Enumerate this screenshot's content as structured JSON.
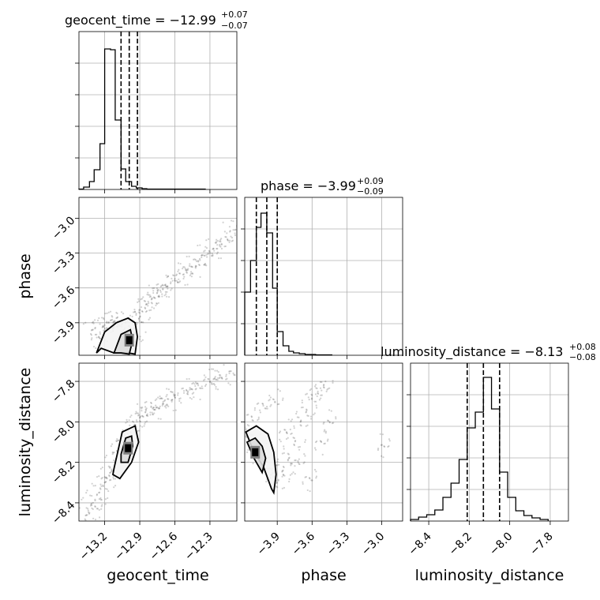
{
  "chart_data": {
    "type": "corner",
    "parameters": [
      "geocent_time",
      "phase",
      "luminosity_distance"
    ],
    "axis_labels": {
      "x": [
        "geocent_time",
        "phase",
        "luminosity_distance"
      ],
      "y": [
        "phase",
        "luminosity_distance"
      ]
    },
    "titles": [
      {
        "name": "geocent_time",
        "median": "−12.99",
        "plus": "+0.07",
        "minus": "−0.07"
      },
      {
        "name": "phase",
        "median": "−3.99",
        "plus": "+0.09",
        "minus": "−0.09"
      },
      {
        "name": "luminosity_distance",
        "median": "−8.13",
        "plus": "+0.08",
        "minus": "−0.08"
      }
    ],
    "ranges": {
      "geocent_time": [
        -13.42,
        -12.07
      ],
      "phase": [
        -4.18,
        -2.82
      ],
      "luminosity_distance": [
        -8.49,
        -7.71
      ]
    },
    "ticks": {
      "geocent_time": [
        -13.2,
        -12.9,
        -12.6,
        -12.3
      ],
      "phase": [
        -3.9,
        -3.6,
        -3.3,
        -3.0
      ],
      "luminosity_distance": [
        -8.4,
        -8.2,
        -8.0,
        -7.8
      ]
    },
    "tick_labels": {
      "geocent_time": [
        "−13.2",
        "−12.9",
        "−12.6",
        "−12.3"
      ],
      "phase": [
        "−3.9",
        "−3.6",
        "−3.3",
        "−3.0"
      ],
      "luminosity_distance": [
        "−8.4",
        "−8.2",
        "−8.0",
        "−7.8"
      ]
    },
    "quantiles": {
      "geocent_time": [
        -13.06,
        -12.99,
        -12.92
      ],
      "phase": [
        -4.08,
        -3.99,
        -3.9
      ],
      "luminosity_distance": [
        -8.21,
        -8.13,
        -8.05
      ]
    },
    "histograms": {
      "geocent_time": {
        "edges": [
          -13.42,
          -13.38,
          -13.33,
          -13.29,
          -13.24,
          -13.2,
          -13.15,
          -13.11,
          -13.06,
          -13.02,
          -12.97,
          -12.93,
          -12.88,
          -12.84,
          -12.79,
          -12.75,
          -12.7,
          -12.66,
          -12.61,
          -12.57,
          -12.52,
          -12.48,
          -12.43,
          -12.39,
          -12.34
        ],
        "counts": [
          0.5,
          3,
          10,
          25,
          58,
          178,
          177,
          88,
          26,
          10,
          4,
          2,
          1,
          0.5,
          0.5,
          0.5,
          0.5,
          0.5,
          0.5,
          0.5,
          0.5,
          0.5,
          0.5,
          0.5
        ],
        "ymax": 200
      },
      "phase": {
        "edges": [
          -4.18,
          -4.13,
          -4.08,
          -4.04,
          -3.99,
          -3.94,
          -3.9,
          -3.85,
          -3.8,
          -3.76,
          -3.71,
          -3.66,
          -3.62,
          -3.57,
          -3.52,
          -3.48,
          -3.43
        ],
        "counts": [
          80,
          120,
          162,
          180,
          155,
          85,
          30,
          12,
          5,
          3,
          2,
          1,
          1,
          0.5,
          0.5,
          0.5
        ],
        "ymax": 200
      },
      "luminosity_distance": {
        "edges": [
          -8.49,
          -8.45,
          -8.41,
          -8.37,
          -8.33,
          -8.29,
          -8.25,
          -8.21,
          -8.17,
          -8.13,
          -8.09,
          -8.05,
          -8.01,
          -7.97,
          -7.93,
          -7.89,
          -7.85,
          -7.81
        ],
        "counts": [
          2,
          5,
          8,
          14,
          30,
          48,
          78,
          118,
          138,
          182,
          142,
          62,
          30,
          13,
          7,
          4,
          2
        ],
        "ymax": 200
      }
    },
    "scatter": {
      "phase_vs_geocent_time": {
        "x": [
          -13.3,
          -13.2,
          -13.15,
          -13.1,
          -13.05,
          -13.0,
          -12.95,
          -12.9,
          -12.85,
          -12.8,
          -12.75,
          -12.7,
          -12.6,
          -12.5,
          -12.4,
          -12.3,
          -12.2,
          -12.15,
          -13.25,
          -13.18,
          -13.08,
          -12.98,
          -12.88,
          -12.78,
          -12.68,
          -12.55,
          -12.45,
          -12.35,
          -12.25,
          -12.1
        ],
        "y": [
          -3.96,
          -3.92,
          -3.88,
          -3.86,
          -3.98,
          -4.05,
          -4.02,
          -3.85,
          -3.75,
          -3.7,
          -3.64,
          -3.6,
          -3.52,
          -3.45,
          -3.38,
          -3.3,
          -3.22,
          -3.18,
          -4.02,
          -3.95,
          -3.9,
          -3.94,
          -3.8,
          -3.68,
          -3.58,
          -3.48,
          -3.42,
          -3.32,
          -3.26,
          -3.1
        ]
      },
      "luminosity_distance_vs_geocent_time": {
        "x": [
          -13.35,
          -13.3,
          -13.25,
          -13.2,
          -13.15,
          -13.1,
          -13.05,
          -13.0,
          -12.95,
          -12.9,
          -12.85,
          -12.8,
          -12.7,
          -12.6,
          -12.5,
          -12.4,
          -12.3,
          -12.2,
          -12.1,
          -13.28,
          -13.18,
          -13.08,
          -12.98,
          -12.88,
          -12.75,
          -12.65,
          -12.45,
          -12.25
        ],
        "y": [
          -8.46,
          -8.4,
          -8.35,
          -8.3,
          -8.25,
          -8.18,
          -8.12,
          -8.08,
          -8.02,
          -7.98,
          -7.95,
          -7.92,
          -7.9,
          -7.87,
          -7.85,
          -7.82,
          -7.8,
          -7.78,
          -7.76,
          -8.42,
          -8.28,
          -8.15,
          -8.05,
          -7.97,
          -7.93,
          -7.89,
          -7.84,
          -7.79
        ]
      },
      "luminosity_distance_vs_phase": {
        "x": [
          -4.15,
          -4.1,
          -4.05,
          -4.0,
          -3.95,
          -3.9,
          -3.85,
          -3.8,
          -3.75,
          -3.7,
          -3.65,
          -3.6,
          -3.55,
          -3.5,
          -4.12,
          -4.02,
          -3.92,
          -3.82,
          -3.72,
          -3.62,
          -3.52,
          -3.45,
          -2.98
        ],
        "y": [
          -8.05,
          -8.1,
          -8.15,
          -8.2,
          -8.26,
          -8.3,
          -8.24,
          -8.18,
          -8.1,
          -8.0,
          -7.95,
          -7.88,
          -7.85,
          -7.82,
          -7.98,
          -7.92,
          -7.9,
          -8.05,
          -8.2,
          -8.28,
          -8.1,
          -8.0,
          -8.12
        ]
      }
    },
    "contours": {
      "phase_vs_geocent_time": [
        {
          "x": [
            -13.27,
            -13.2,
            -13.1,
            -13.0,
            -12.94,
            -12.92,
            -12.94,
            -13.0,
            -13.12,
            -13.23,
            -13.27
          ],
          "y": [
            -4.16,
            -3.98,
            -3.9,
            -3.86,
            -3.9,
            -4.02,
            -4.17,
            -4.16,
            -4.16,
            -4.12,
            -4.16
          ]
        },
        {
          "x": [
            -13.12,
            -13.06,
            -12.98,
            -12.96,
            -12.99,
            -13.06,
            -13.12
          ],
          "y": [
            -4.16,
            -4.0,
            -3.96,
            -4.05,
            -4.17,
            -4.16,
            -4.16
          ]
        }
      ],
      "luminosity_distance_vs_geocent_time": [
        {
          "x": [
            -13.12,
            -13.05,
            -12.94,
            -12.91,
            -12.97,
            -13.07,
            -13.13,
            -13.12
          ],
          "y": [
            -8.23,
            -8.05,
            -8.02,
            -8.1,
            -8.2,
            -8.28,
            -8.26,
            -8.23
          ]
        },
        {
          "x": [
            -13.06,
            -13.02,
            -12.97,
            -12.96,
            -13.0,
            -13.06,
            -13.06
          ],
          "y": [
            -8.16,
            -8.08,
            -8.07,
            -8.12,
            -8.2,
            -8.2,
            -8.16
          ]
        }
      ],
      "luminosity_distance_vs_phase": [
        {
          "x": [
            -4.17,
            -4.08,
            -3.98,
            -3.93,
            -3.91,
            -3.93,
            -3.95,
            -4.02,
            -4.1,
            -4.17
          ],
          "y": [
            -8.05,
            -8.02,
            -8.06,
            -8.15,
            -8.26,
            -8.35,
            -8.33,
            -8.22,
            -8.15,
            -8.05
          ]
        },
        {
          "x": [
            -4.16,
            -4.09,
            -4.03,
            -4.0,
            -4.03,
            -4.1,
            -4.16
          ],
          "y": [
            -8.1,
            -8.08,
            -8.12,
            -8.18,
            -8.25,
            -8.18,
            -8.1
          ]
        }
      ]
    },
    "density_peaks": {
      "phase_vs_geocent_time": {
        "x": -12.99,
        "y": -4.05
      },
      "luminosity_distance_vs_geocent_time": {
        "x": -13.0,
        "y": -8.13
      },
      "luminosity_distance_vs_phase": {
        "x": -4.09,
        "y": -8.15
      }
    },
    "grid": true,
    "colors": {
      "line": "#000000",
      "points": "#000000",
      "grid": "#b0b0b0",
      "density": "#808080"
    }
  }
}
